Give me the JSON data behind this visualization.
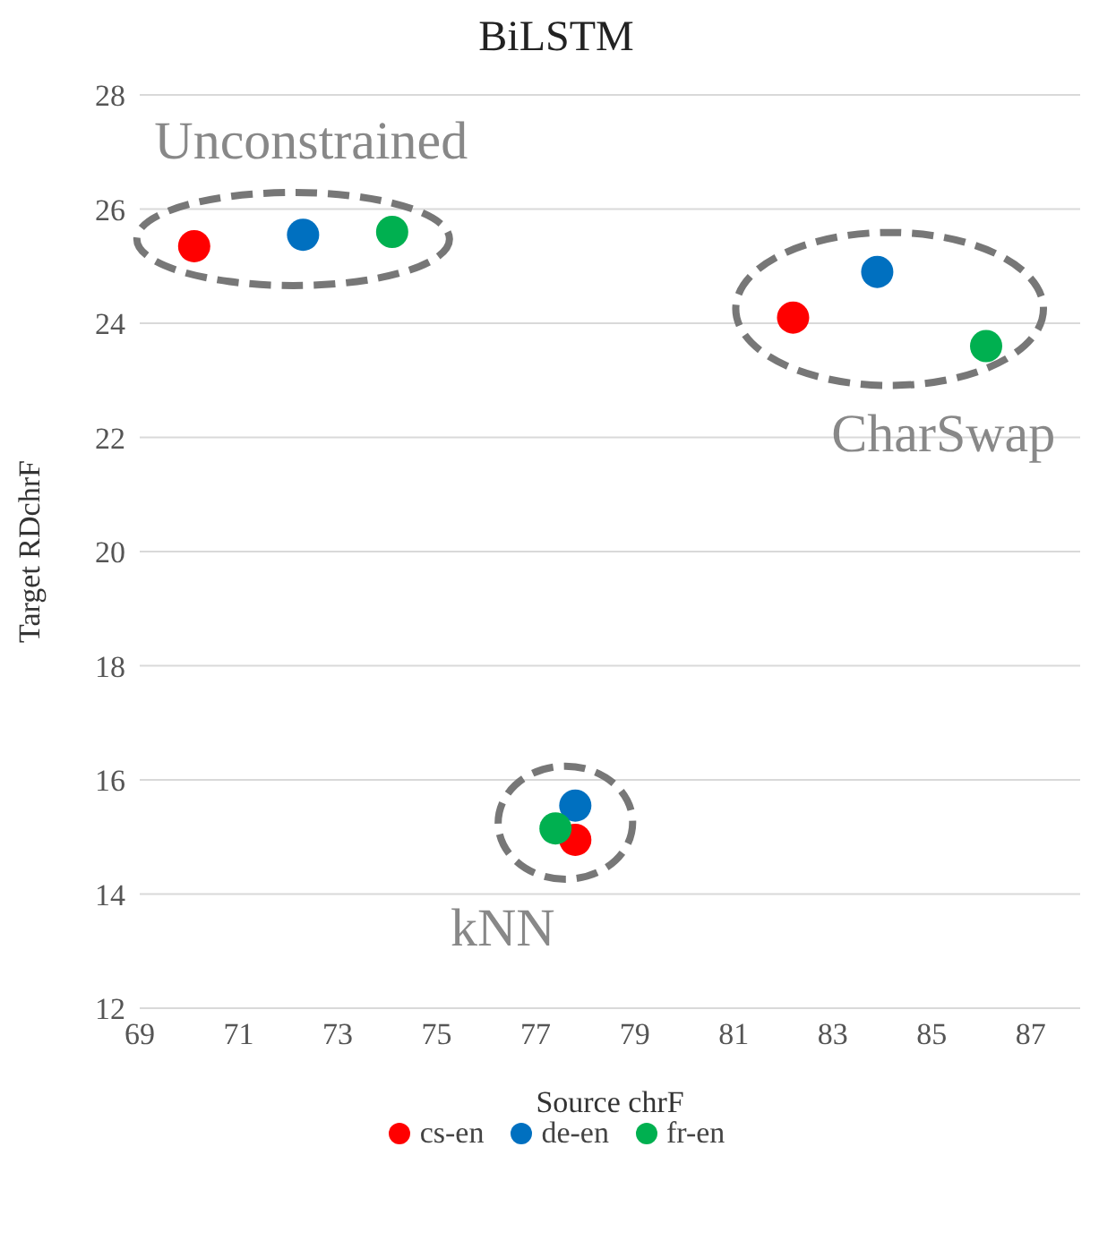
{
  "chart_data": {
    "type": "scatter",
    "title": "BiLSTM",
    "xlabel": "Source chrF",
    "ylabel": "Target RDchrF",
    "series": [
      {
        "name": "cs-en",
        "color": "#ff0000",
        "x": [
          70.1,
          82.2,
          77.8
        ],
        "values": [
          25.35,
          24.1,
          14.95
        ]
      },
      {
        "name": "de-en",
        "color": "#0070c0",
        "x": [
          72.3,
          83.9,
          77.8
        ],
        "values": [
          25.55,
          24.9,
          15.55
        ]
      },
      {
        "name": "fr-en",
        "color": "#00b050",
        "x": [
          74.1,
          86.1,
          77.4
        ],
        "values": [
          25.6,
          23.6,
          15.15
        ]
      }
    ],
    "annotations": [
      "Unconstrained",
      "CharSwap",
      "kNN"
    ],
    "xlim": [
      69,
      88
    ],
    "xticks": [
      69,
      71,
      73,
      75,
      77,
      79,
      81,
      83,
      85,
      87
    ],
    "ylim": [
      12,
      28
    ],
    "yticks": [
      12,
      14,
      16,
      18,
      20,
      22,
      24,
      26,
      28
    ],
    "grid": "y",
    "legend": "bottom",
    "marker": "circle"
  }
}
